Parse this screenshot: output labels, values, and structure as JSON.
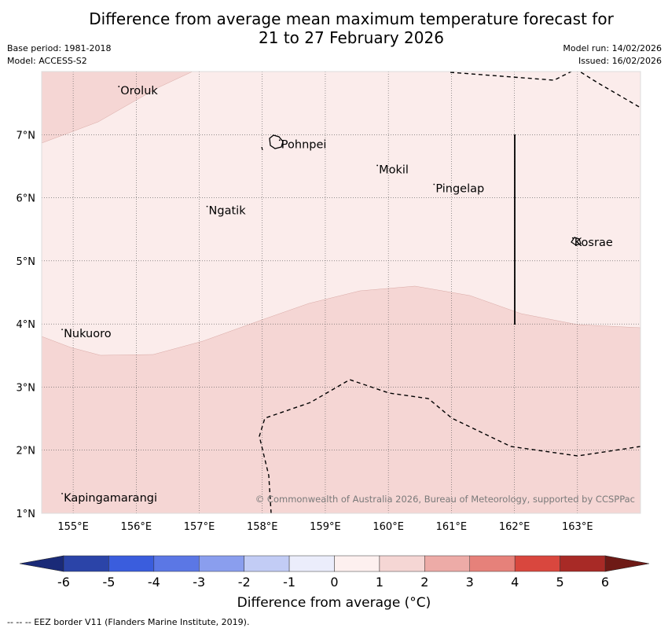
{
  "title": {
    "line1": "Difference from average mean maximum temperature forecast for",
    "line2": "21 to 27 February 2026"
  },
  "meta": {
    "base_period": "Base period: 1981-2018",
    "model": "Model: ACCESS-S2",
    "model_run": "Model run: 14/02/2026",
    "issued": "Issued: 16/02/2026"
  },
  "map": {
    "lon_range": [
      154.5,
      164.0
    ],
    "lat_range": [
      1.0,
      8.0
    ],
    "lon_ticks": [
      {
        "value": 155,
        "label": "155°E"
      },
      {
        "value": 156,
        "label": "156°E"
      },
      {
        "value": 157,
        "label": "157°E"
      },
      {
        "value": 158,
        "label": "158°E"
      },
      {
        "value": 159,
        "label": "159°E"
      },
      {
        "value": 160,
        "label": "160°E"
      },
      {
        "value": 161,
        "label": "161°E"
      },
      {
        "value": 162,
        "label": "162°E"
      },
      {
        "value": 163,
        "label": "163°E"
      }
    ],
    "lat_ticks": [
      {
        "value": 1,
        "label": "1°N"
      },
      {
        "value": 2,
        "label": "2°N"
      },
      {
        "value": 3,
        "label": "3°N"
      },
      {
        "value": 4,
        "label": "4°N"
      },
      {
        "value": 5,
        "label": "5°N"
      },
      {
        "value": 6,
        "label": "6°N"
      },
      {
        "value": 7,
        "label": "7°N"
      }
    ],
    "places": [
      {
        "name": "Oroluk",
        "lon": 155.75,
        "lat": 7.7
      },
      {
        "name": "Pohnpei",
        "lon": 158.3,
        "lat": 6.85
      },
      {
        "name": "Mokil",
        "lon": 159.85,
        "lat": 6.45
      },
      {
        "name": "Pingelap",
        "lon": 160.75,
        "lat": 6.15
      },
      {
        "name": "Ngatik",
        "lon": 157.15,
        "lat": 5.8
      },
      {
        "name": "Kosrae",
        "lon": 162.95,
        "lat": 5.3
      },
      {
        "name": "Nukuoro",
        "lon": 154.85,
        "lat": 3.85
      },
      {
        "name": "Kapingamarangi",
        "lon": 154.85,
        "lat": 1.25
      }
    ],
    "copyright": "© Commonwealth of Australia 2026, Bureau of Meteorology, supported by CCSPPac"
  },
  "colorbar": {
    "ticks": [
      "-6",
      "-5",
      "-4",
      "-3",
      "-2",
      "-1",
      "0",
      "1",
      "2",
      "3",
      "4",
      "5",
      "6"
    ],
    "colors": [
      "#2b44a8",
      "#3a5ddd",
      "#5b77e5",
      "#8a9eee",
      "#c2ccf5",
      "#ebedfb",
      "#fdf0ef",
      "#f5d6d4",
      "#edaba7",
      "#e6817a",
      "#d9473e",
      "#a82a26"
    ],
    "extend_low": "#1a2a78",
    "extend_high": "#6e1a16",
    "label": "Difference from average (°C)"
  },
  "legend_footer": "--  --  -- EEZ border V11 (Flanders Marine Institute, 2019).",
  "colors": {
    "band_0_1": "#fbeceb",
    "band_1_2": "#f5d6d4",
    "grid": "#555555"
  }
}
